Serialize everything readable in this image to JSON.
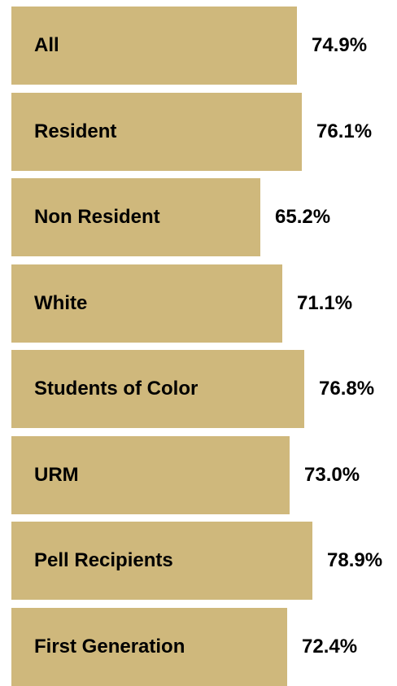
{
  "chart_data": {
    "type": "bar",
    "orientation": "horizontal",
    "categories": [
      "All",
      "Resident",
      "Non Resident",
      "White",
      "Students of Color",
      "URM",
      "Pell Recipients",
      "First Generation"
    ],
    "values": [
      74.9,
      76.1,
      65.2,
      71.1,
      76.8,
      73.0,
      78.9,
      72.4
    ],
    "value_labels": [
      "74.9%",
      "76.1%",
      "65.2%",
      "71.1%",
      "76.8%",
      "73.0%",
      "78.9%",
      "72.4%"
    ],
    "title": "",
    "xlabel": "",
    "ylabel": "",
    "grid": false,
    "legend": "none",
    "bar_color": "#CFB87C",
    "text_color": "#000000"
  }
}
